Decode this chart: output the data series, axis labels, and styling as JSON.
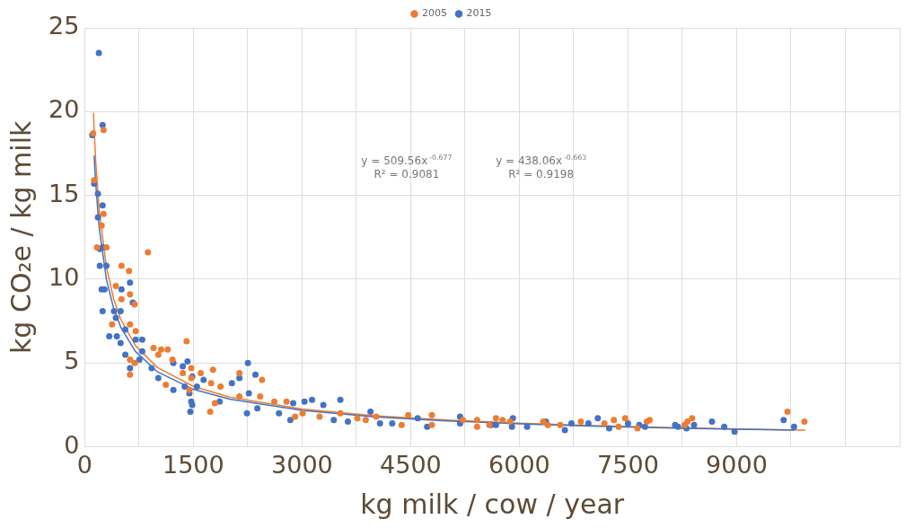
{
  "chart_data": {
    "type": "scatter",
    "xlabel": "kg milk / cow / year",
    "ylabel": "kg CO₂e / kg milk",
    "xlim": [
      0,
      11250
    ],
    "ylim": [
      0,
      25
    ],
    "xticks": [
      0,
      {
        "value": 750,
        "label": null
      },
      1500,
      {
        "value": 2250,
        "label": null
      },
      3000,
      {
        "value": 3750,
        "label": null
      },
      4500,
      {
        "value": 5250,
        "label": null
      },
      6000,
      {
        "value": 6750,
        "label": null
      },
      7500,
      {
        "value": 8250,
        "label": null
      },
      9000,
      {
        "value": 9750,
        "label": null
      },
      {
        "value": 10500,
        "label": null
      },
      {
        "value": 11250,
        "label": null
      }
    ],
    "yticks": [
      0,
      5,
      10,
      15,
      20,
      25
    ],
    "grid": true,
    "legend": "top",
    "annotations": [
      "y = 509.56x$^{-0.677}$",
      "R² = 0.9081",
      "y = 438.06x$^{-0.663}$",
      "R² = 0.9198"
    ],
    "series": [
      {
        "name": "2005",
        "color": "#ed7d31",
        "marker": "circle",
        "x": [
          117,
          260,
          130,
          260,
          234,
          169,
          300,
          872,
          508,
          612,
          430,
          508,
          690,
          625,
          378,
          625,
          703,
          625,
          690,
          625,
          950,
          1055,
          1146,
          1016,
          1211,
          1120,
          1406,
          1354,
          1471,
          1601,
          1771,
          1745,
          1875,
          1797,
          1732,
          2135,
          2135,
          2448,
          2422,
          2617,
          2786,
          2904,
          3008,
          3242,
          3529,
          3763,
          3880,
          4023,
          4375,
          4466,
          4792,
          4792,
          5221,
          5417,
          5417,
          5677,
          5768,
          5872,
          5586,
          6328,
          6393,
          6563,
          6849,
          7174,
          7305,
          7370,
          7461,
          7630,
          7760,
          7799,
          8281,
          8320,
          8385,
          9701,
          9935,
          1471,
          1445
        ],
        "values": [
          18.7,
          18.9,
          15.9,
          13.9,
          13.2,
          11.9,
          11.9,
          11.6,
          10.8,
          10.5,
          9.6,
          8.8,
          8.5,
          9.1,
          7.3,
          7.3,
          6.9,
          5.2,
          5.0,
          4.3,
          5.9,
          5.8,
          5.8,
          5.5,
          5.2,
          3.7,
          6.3,
          4.4,
          4.7,
          4.4,
          4.6,
          3.8,
          3.6,
          2.6,
          2.1,
          4.4,
          3.0,
          4.0,
          3.0,
          2.7,
          2.7,
          1.8,
          2.0,
          1.8,
          2.0,
          1.7,
          1.6,
          1.8,
          1.3,
          1.9,
          1.9,
          1.3,
          1.6,
          1.6,
          1.2,
          1.7,
          1.6,
          1.5,
          1.3,
          1.5,
          1.3,
          1.3,
          1.5,
          1.4,
          1.6,
          1.2,
          1.7,
          1.1,
          1.5,
          1.6,
          1.3,
          1.5,
          1.7,
          2.1,
          1.5,
          4.1,
          3.4
        ]
      },
      {
        "name": "2015",
        "color": "#4472c4",
        "marker": "circle",
        "x": [
          195,
          247,
          104,
          130,
          182,
          247,
          182,
          208,
          247,
          208,
          300,
          234,
          273,
          247,
          404,
          495,
          625,
          508,
          664,
          430,
          339,
          443,
          495,
          560,
          703,
          794,
          560,
          625,
          755,
          794,
          924,
          1016,
          1224,
          1224,
          1354,
          1419,
          1380,
          1445,
          1471,
          1458,
          1484,
          1484,
          1549,
          1641,
          1862,
          2031,
          2135,
          2253,
          2266,
          2240,
          2357,
          2383,
          2682,
          2839,
          2878,
          3034,
          3138,
          3294,
          3438,
          3529,
          3633,
          3945,
          4076,
          4245,
          4596,
          4727,
          5182,
          5182,
          5612,
          5677,
          5911,
          5898,
          6107,
          6367,
          6628,
          6719,
          6953,
          7083,
          7240,
          7500,
          7656,
          7734,
          8151,
          8190,
          8307,
          8411,
          8659,
          8828,
          8971,
          9648,
          9792
        ],
        "values": [
          23.5,
          19.2,
          18.6,
          15.7,
          15.1,
          14.4,
          13.7,
          11.8,
          11.9,
          10.8,
          10.8,
          9.4,
          9.4,
          8.1,
          8.1,
          8.1,
          9.8,
          9.4,
          8.6,
          7.7,
          6.6,
          6.6,
          6.2,
          7.0,
          6.4,
          6.4,
          5.5,
          4.7,
          5.2,
          5.7,
          4.7,
          4.1,
          5.0,
          3.4,
          4.8,
          5.1,
          3.6,
          3.2,
          2.7,
          2.1,
          2.5,
          4.2,
          3.6,
          4.0,
          2.7,
          3.8,
          4.1,
          5.0,
          3.2,
          2.0,
          4.3,
          2.3,
          2.0,
          1.6,
          2.6,
          2.7,
          2.8,
          2.5,
          1.6,
          2.8,
          1.5,
          2.1,
          1.4,
          1.4,
          1.7,
          1.2,
          1.8,
          1.4,
          1.3,
          1.3,
          1.7,
          1.2,
          1.2,
          1.5,
          1.0,
          1.4,
          1.4,
          1.7,
          1.1,
          1.4,
          1.3,
          1.2,
          1.3,
          1.2,
          1.1,
          1.3,
          1.5,
          1.2,
          0.9,
          1.6,
          1.2
        ]
      },
      {
        "type": "line",
        "color": "#ed7d31",
        "marker": "none",
        "x": [
          120,
          150,
          200,
          300,
          400,
          500,
          700,
          1000,
          1500,
          2000,
          3000,
          4000,
          5000,
          6000,
          7000,
          8000,
          9000,
          9950
        ],
        "values": [
          19.93,
          17.14,
          14.1,
          10.72,
          8.82,
          7.59,
          6.04,
          4.74,
          3.61,
          2.97,
          2.26,
          1.86,
          1.6,
          1.41,
          1.27,
          1.16,
          1.07,
          1.0
        ]
      },
      {
        "type": "line",
        "color": "#4472c4",
        "marker": "none",
        "x": [
          130,
          150,
          200,
          300,
          400,
          500,
          700,
          1000,
          1500,
          2000,
          3000,
          4000,
          5000,
          6000,
          7000,
          8000,
          9000,
          9800
        ],
        "values": [
          17.38,
          15.81,
          13.06,
          9.98,
          8.25,
          7.11,
          5.69,
          4.49,
          3.43,
          2.84,
          2.17,
          1.79,
          1.55,
          1.37,
          1.24,
          1.13,
          1.05,
          0.99
        ]
      }
    ]
  }
}
